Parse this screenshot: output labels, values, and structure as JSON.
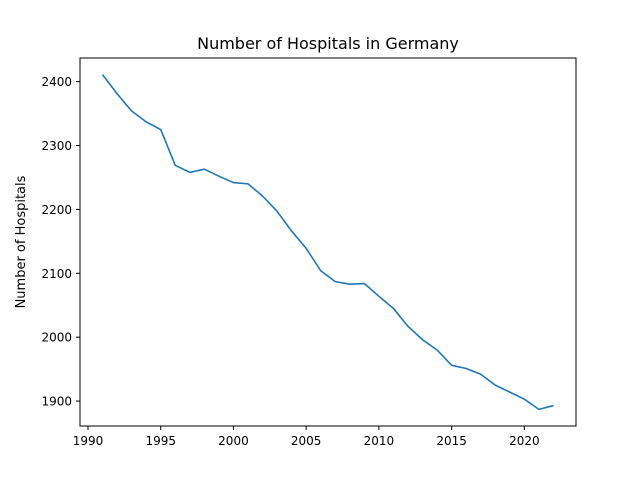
{
  "chart_data": {
    "type": "line",
    "title": "Number of Hospitals in Germany",
    "xlabel": "",
    "ylabel": "Number of Hospitals",
    "xlim": [
      1989.45,
      2023.55
    ],
    "ylim": [
      1861,
      2437
    ],
    "xticks": [
      1990,
      1995,
      2000,
      2005,
      2010,
      2015,
      2020
    ],
    "yticks": [
      1900,
      2000,
      2100,
      2200,
      2300,
      2400
    ],
    "grid": false,
    "line_color": "#1f77b4",
    "series": [
      {
        "x": [
          1991,
          1992,
          1993,
          1994,
          1995,
          1996,
          1997,
          1998,
          1999,
          2000,
          2001,
          2002,
          2003,
          2004,
          2005,
          2006,
          2007,
          2008,
          2009,
          2010,
          2011,
          2012,
          2013,
          2014,
          2015,
          2016,
          2017,
          2018,
          2019,
          2020,
          2021,
          2022
        ],
        "values": [
          2411,
          2381,
          2354,
          2337,
          2325,
          2269,
          2258,
          2263,
          2252,
          2242,
          2240,
          2221,
          2197,
          2166,
          2139,
          2104,
          2087,
          2083,
          2084,
          2064,
          2045,
          2017,
          1996,
          1980,
          1956,
          1951,
          1942,
          1925,
          1914,
          1903,
          1887,
          1893
        ]
      }
    ]
  }
}
